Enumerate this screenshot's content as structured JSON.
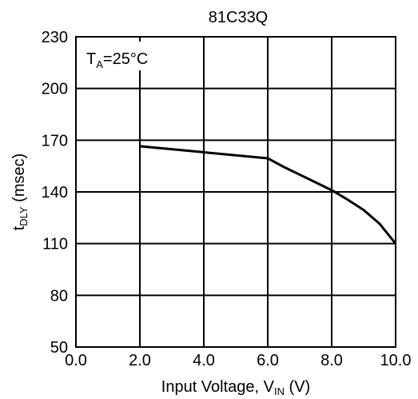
{
  "chart_data": {
    "type": "line",
    "title": "81C33Q",
    "annotation": {
      "main": "T",
      "sub": "A",
      "rest": "=25°C"
    },
    "xlabel": {
      "pre": "Input Voltage, V",
      "sub": "IN",
      "post": " (V)"
    },
    "ylabel": {
      "pre": "t",
      "sub": "DLY",
      "post": " (msec)"
    },
    "xlim": [
      0,
      10
    ],
    "ylim": [
      50,
      230
    ],
    "xticks": [
      0,
      2,
      4,
      6,
      8,
      10
    ],
    "xtick_labels": [
      "0.0",
      "2.0",
      "4.0",
      "6.0",
      "8.0",
      "10.0"
    ],
    "yticks": [
      50,
      80,
      110,
      140,
      170,
      200,
      230
    ],
    "ytick_labels": [
      "50",
      "80",
      "110",
      "140",
      "170",
      "200",
      "230"
    ],
    "grid": true,
    "series": [
      {
        "x": [
          2.0,
          6.0,
          6.5,
          7.0,
          7.5,
          8.0,
          8.5,
          9.0,
          9.5,
          10.0
        ],
        "y": [
          166.5,
          159.5,
          154.5,
          150,
          145.5,
          141,
          135.5,
          129.5,
          121.5,
          110
        ]
      }
    ]
  }
}
